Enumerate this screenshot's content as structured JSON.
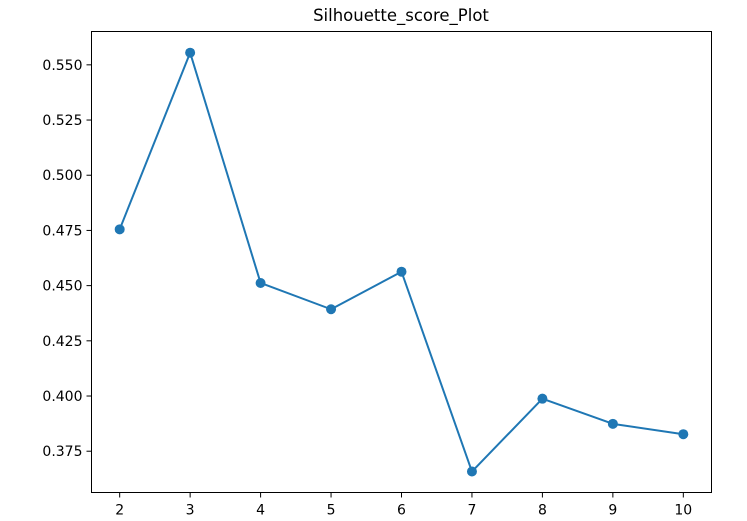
{
  "chart_data": {
    "type": "line",
    "title": "Silhouette_score_Plot",
    "xlabel": "",
    "ylabel": "",
    "x": [
      2,
      3,
      4,
      5,
      6,
      7,
      8,
      9,
      10
    ],
    "series": [
      {
        "values": [
          0.4755,
          0.5555,
          0.4512,
          0.4393,
          0.4563,
          0.3658,
          0.3988,
          0.3874,
          0.3827
        ],
        "color": "#1f77b4",
        "marker": "circle"
      }
    ],
    "xlim": [
      1.6,
      10.4
    ],
    "ylim": [
      0.3563,
      0.5651
    ],
    "xticks": [
      2,
      3,
      4,
      5,
      6,
      7,
      8,
      9,
      10
    ],
    "xtick_labels": [
      "2",
      "3",
      "4",
      "5",
      "6",
      "7",
      "8",
      "9",
      "10"
    ],
    "yticks": [
      0.375,
      0.4,
      0.425,
      0.45,
      0.475,
      0.5,
      0.525,
      0.55
    ],
    "ytick_labels": [
      "0.375",
      "0.400",
      "0.425",
      "0.450",
      "0.475",
      "0.500",
      "0.525",
      "0.550"
    ],
    "grid": false,
    "legend": false
  }
}
